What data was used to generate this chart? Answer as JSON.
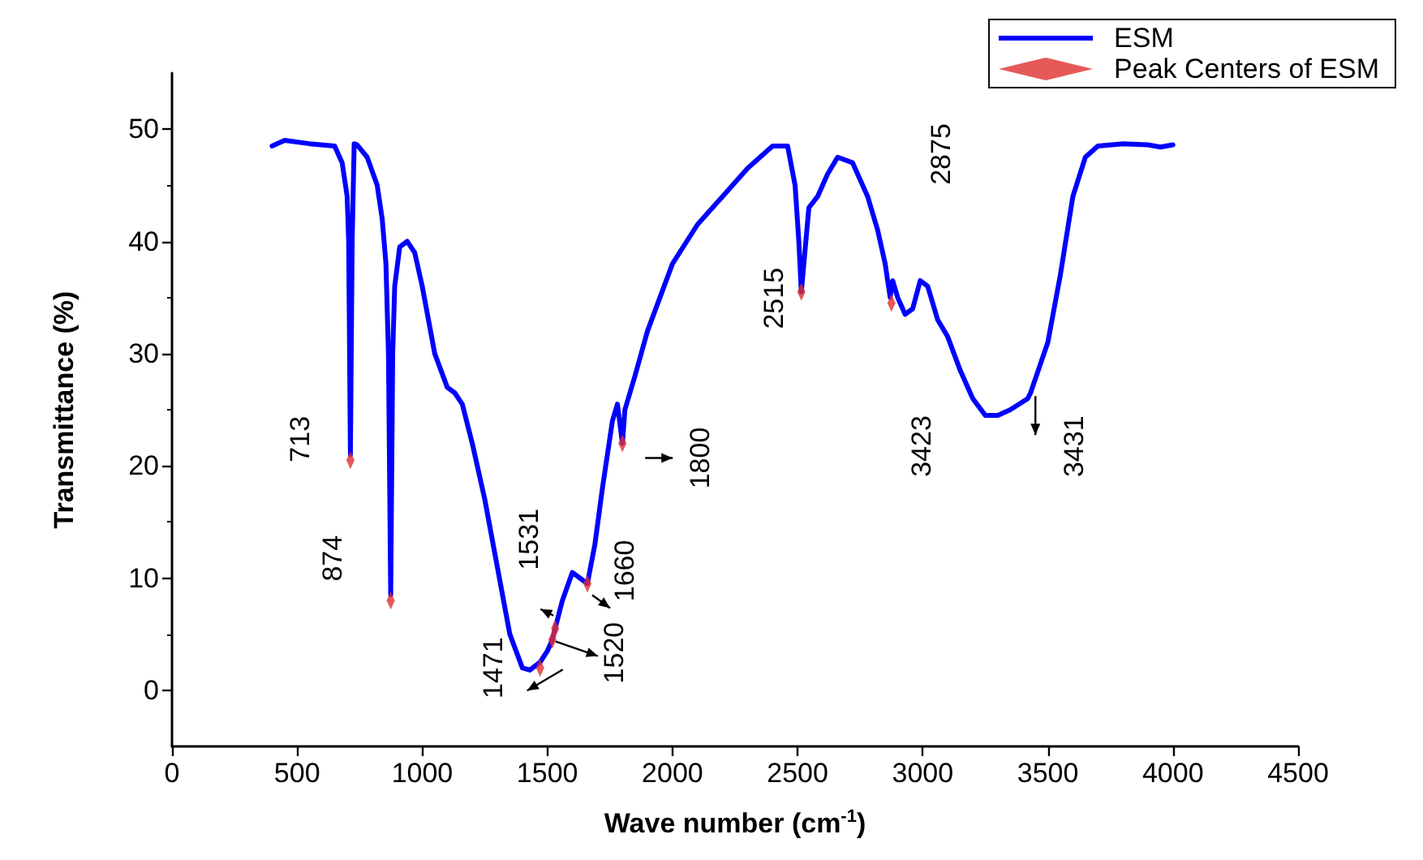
{
  "chart_data": {
    "type": "line",
    "xlabel": "Wave number (cm$^{-1}$)",
    "ylabel": "Transmittance (%)",
    "xlim": [
      0,
      4500
    ],
    "xticks": [
      0,
      500,
      1000,
      1500,
      2000,
      2500,
      3000,
      3500,
      4000,
      4500
    ],
    "ylim": [
      -5,
      55
    ],
    "yticks": [
      0,
      10,
      20,
      30,
      40,
      50
    ],
    "grid": false,
    "legend": "top right",
    "series": [
      {
        "name": "ESM",
        "color": "#0000ff",
        "x": [
          400,
          450,
          550,
          650,
          680,
          700,
          706,
          713,
          720,
          728,
          740,
          780,
          820,
          840,
          855,
          865,
          874,
          882,
          890,
          910,
          940,
          970,
          1000,
          1050,
          1100,
          1130,
          1160,
          1200,
          1250,
          1300,
          1350,
          1400,
          1430,
          1471,
          1500,
          1520,
          1531,
          1560,
          1600,
          1630,
          1660,
          1690,
          1720,
          1760,
          1780,
          1800,
          1810,
          1850,
          1900,
          1950,
          2000,
          2100,
          2200,
          2300,
          2400,
          2460,
          2490,
          2505,
          2515,
          2525,
          2545,
          2580,
          2620,
          2660,
          2720,
          2780,
          2820,
          2850,
          2870,
          2880,
          2900,
          2930,
          2960,
          2990,
          3020,
          3060,
          3100,
          3150,
          3200,
          3250,
          3300,
          3350,
          3420,
          3431,
          3500,
          3550,
          3600,
          3650,
          3700,
          3800,
          3900,
          3950,
          4000
        ],
        "values": [
          48.5,
          49,
          48.7,
          48.5,
          47,
          44,
          40,
          21,
          40,
          48.7,
          48.6,
          47.5,
          45,
          42,
          38,
          30,
          8.5,
          30,
          36,
          39.5,
          40,
          39,
          36,
          30,
          27,
          26.5,
          25.5,
          22,
          17,
          11,
          5,
          2,
          1.8,
          2.5,
          3.5,
          4.5,
          5.5,
          8,
          10.5,
          10,
          9.5,
          13,
          18,
          24,
          25.5,
          22,
          25,
          28,
          32,
          35,
          38,
          41.5,
          44,
          46.5,
          48.5,
          48.5,
          45,
          40,
          35.5,
          38,
          43,
          44,
          46,
          47.5,
          47,
          44,
          41,
          38,
          35,
          36.5,
          35,
          33.5,
          34,
          36.5,
          36,
          33,
          31.5,
          28.5,
          26,
          24.5,
          24.5,
          25,
          26,
          26.5,
          31,
          37,
          44,
          47.5,
          48.5,
          48.7,
          48.6,
          48.4,
          48.6
        ]
      },
      {
        "name": "Peak Centers of ESM",
        "type": "scatter",
        "marker": "diamond",
        "color": "#e03030",
        "x": [
          713,
          874,
          1471,
          1520,
          1531,
          1660,
          1800,
          2515,
          2875
        ],
        "values": [
          20.5,
          8,
          2,
          4.5,
          5.5,
          9.5,
          22,
          35.5,
          34.5
        ]
      }
    ],
    "annotations": [
      {
        "text": "713",
        "x": 713,
        "y": 20.5
      },
      {
        "text": "874",
        "x": 874,
        "y": 8
      },
      {
        "text": "1471",
        "x": 1471,
        "y": 2
      },
      {
        "text": "1531",
        "x": 1531,
        "y": 5.5
      },
      {
        "text": "1520",
        "x": 1520,
        "y": 4.5
      },
      {
        "text": "1660",
        "x": 1660,
        "y": 9.5
      },
      {
        "text": "1800",
        "x": 1800,
        "y": 22
      },
      {
        "text": "2515",
        "x": 2515,
        "y": 35.5
      },
      "2875",
      "3423",
      {
        "text": "3431",
        "x": 3431,
        "y": 26.5
      }
    ]
  }
}
